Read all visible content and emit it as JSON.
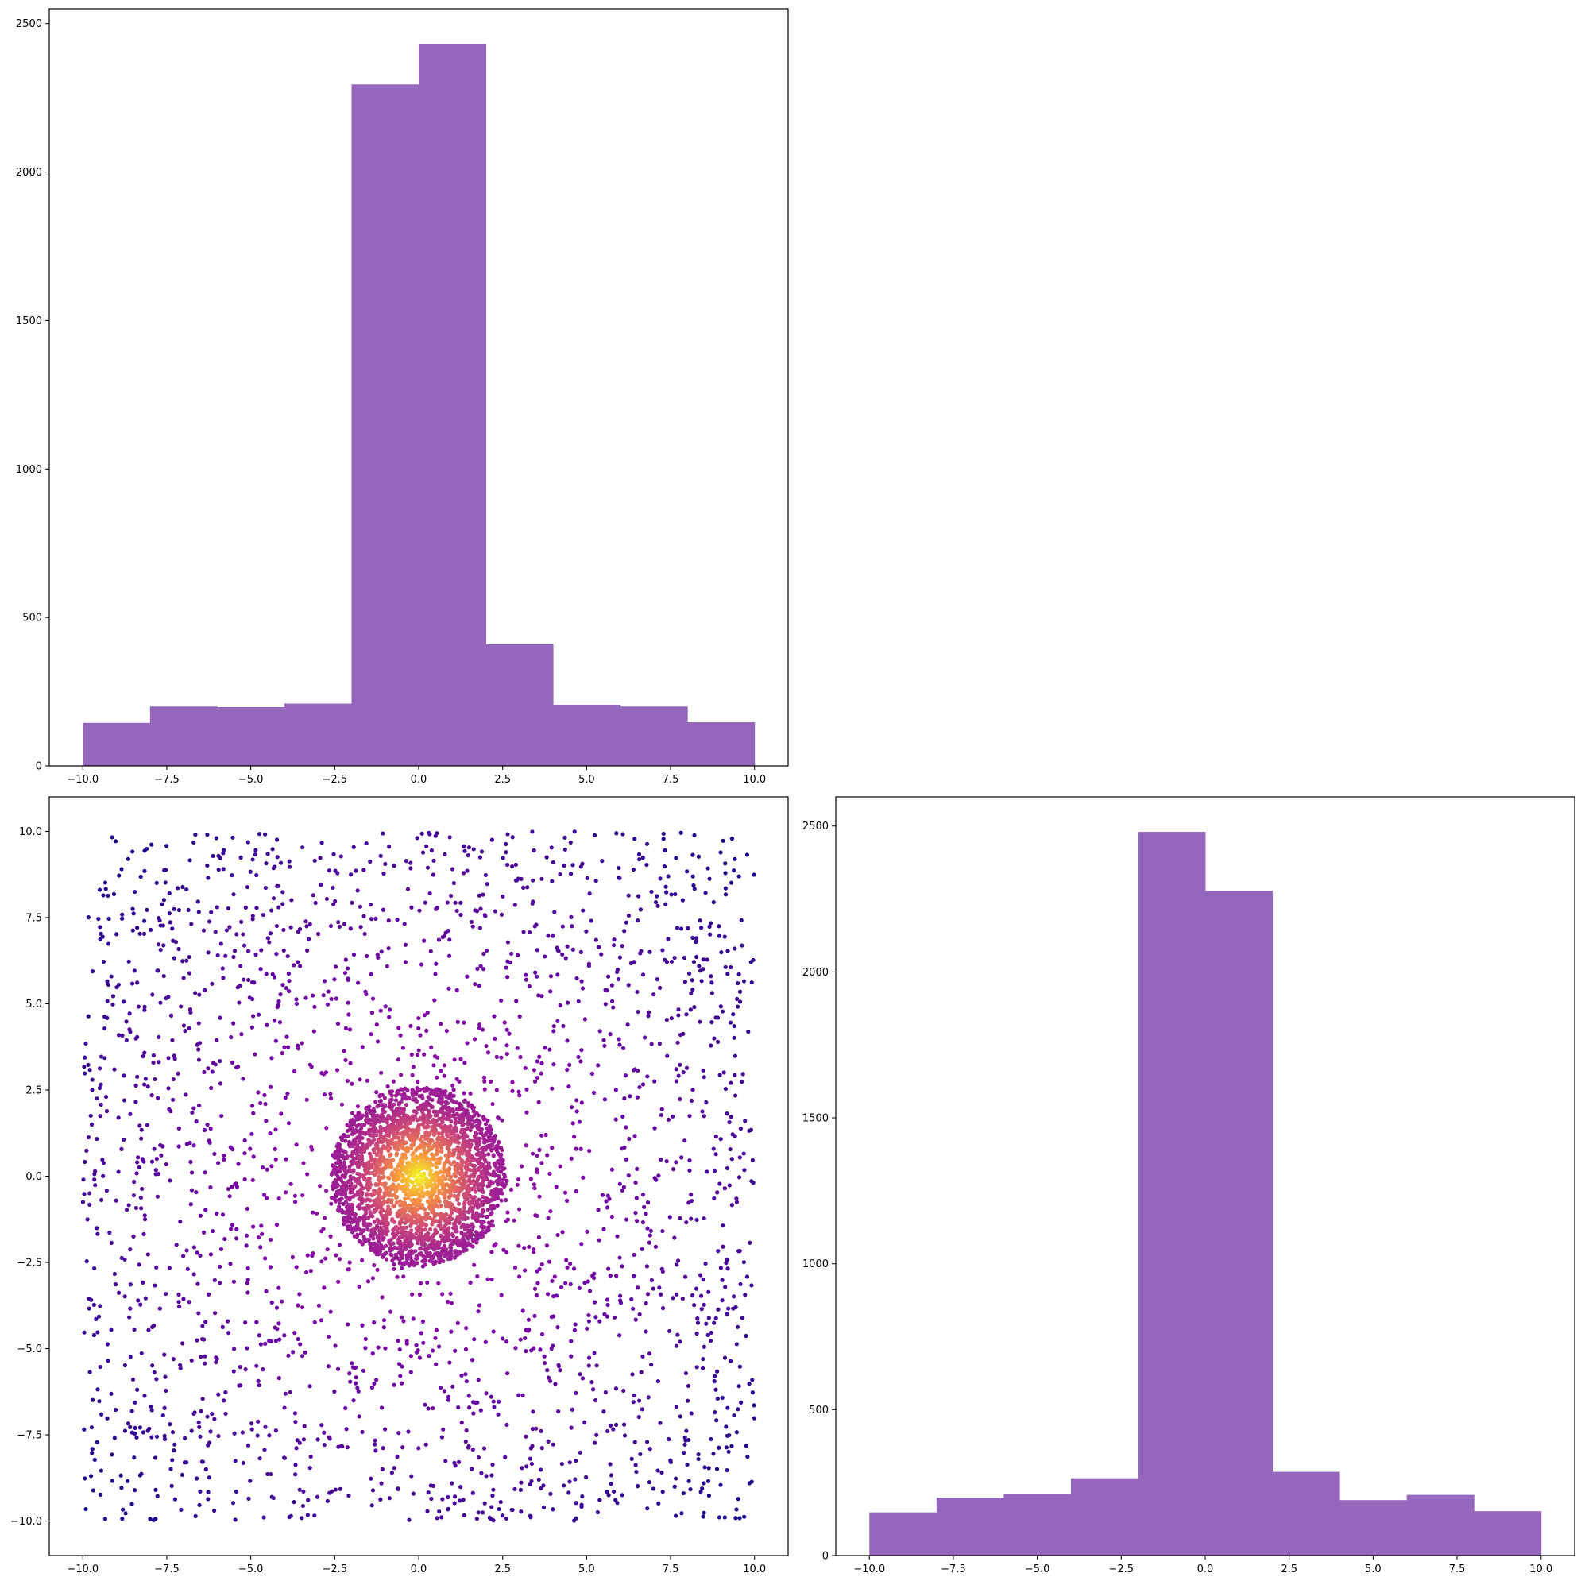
{
  "colors": {
    "bar": "#9467bd",
    "scatter_colormap": "plasma"
  },
  "chart_data": [
    {
      "type": "bar",
      "panel": "top-left",
      "bin_edges": [
        -10,
        -8,
        -6,
        -4,
        -2,
        0,
        2,
        4,
        6,
        8,
        10
      ],
      "values": [
        145,
        200,
        198,
        210,
        2295,
        2430,
        410,
        205,
        200,
        147
      ],
      "xlim": [
        -11,
        11
      ],
      "ylim": [
        0,
        2550
      ],
      "xticks": [
        -10,
        -7.5,
        -5,
        -2.5,
        0,
        2.5,
        5,
        7.5,
        10
      ],
      "xtick_labels": [
        "−10.0",
        "−7.5",
        "−5.0",
        "−2.5",
        "0.0",
        "2.5",
        "5.0",
        "7.5",
        "10.0"
      ],
      "yticks": [
        0,
        500,
        1000,
        1500,
        2000,
        2500
      ],
      "ytick_labels": [
        "0",
        "500",
        "1000",
        "1500",
        "2000",
        "2500"
      ],
      "grid": false
    },
    {
      "type": "scatter",
      "panel": "bottom-left",
      "description_of_points": "about 5000 points: roughly 2300 uniformly scattered over [-10,10]x[-10,10] plus a dense cluster of about 2700 points within radius 2.6 of the origin; colour by local density (plasma)",
      "clusters": [
        {
          "shape": "uniform-square",
          "x_range": [
            -10,
            10
          ],
          "y_range": [
            -10,
            10
          ],
          "count": 2300
        },
        {
          "shape": "disk",
          "center": [
            0,
            0
          ],
          "radius": 2.6,
          "count": 2700
        }
      ],
      "xlim": [
        -11,
        11
      ],
      "ylim": [
        -11,
        11
      ],
      "xticks": [
        -10,
        -7.5,
        -5,
        -2.5,
        0,
        2.5,
        5,
        7.5,
        10
      ],
      "xtick_labels": [
        "−10.0",
        "−7.5",
        "−5.0",
        "−2.5",
        "0.0",
        "2.5",
        "5.0",
        "7.5",
        "10.0"
      ],
      "yticks": [
        -10,
        -7.5,
        -5,
        -2.5,
        0,
        2.5,
        5,
        7.5,
        10
      ],
      "ytick_labels": [
        "−10.0",
        "−7.5",
        "−5.0",
        "−2.5",
        "0.0",
        "2.5",
        "5.0",
        "7.5",
        "10.0"
      ],
      "grid": false
    },
    {
      "type": "bar",
      "panel": "bottom-right",
      "bin_edges": [
        -10,
        -8,
        -6,
        -4,
        -2,
        0,
        2,
        4,
        6,
        8,
        10
      ],
      "values": [
        148,
        198,
        212,
        265,
        2480,
        2278,
        287,
        190,
        208,
        152
      ],
      "xlim": [
        -11,
        11
      ],
      "ylim": [
        0,
        2600
      ],
      "xticks": [
        -10,
        -7.5,
        -5,
        -2.5,
        0,
        2.5,
        5,
        7.5,
        10
      ],
      "xtick_labels": [
        "−10.0",
        "−7.5",
        "−5.0",
        "−2.5",
        "0.0",
        "2.5",
        "5.0",
        "7.5",
        "10.0"
      ],
      "yticks": [
        0,
        500,
        1000,
        1500,
        2000,
        2500
      ],
      "ytick_labels": [
        "0",
        "500",
        "1000",
        "1500",
        "2000",
        "2500"
      ],
      "grid": false
    }
  ]
}
